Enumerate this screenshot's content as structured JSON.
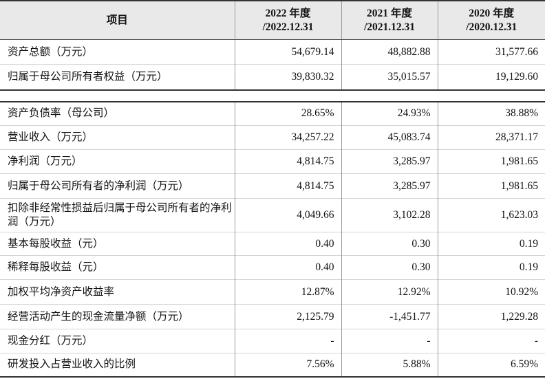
{
  "header": {
    "item": "项目",
    "cols": [
      {
        "year": "2022 年度",
        "date": "/2022.12.31"
      },
      {
        "year": "2021 年度",
        "date": "/2021.12.31"
      },
      {
        "year": "2020 年度",
        "date": "/2020.12.31"
      }
    ]
  },
  "section1": [
    {
      "label": "资产总额（万元）",
      "v": [
        "54,679.14",
        "48,882.88",
        "31,577.66"
      ]
    },
    {
      "label": "归属于母公司所有者权益（万元）",
      "v": [
        "39,830.32",
        "35,015.57",
        "19,129.60"
      ]
    }
  ],
  "section2": [
    {
      "label": "资产负债率（母公司）",
      "v": [
        "28.65%",
        "24.93%",
        "38.88%"
      ]
    },
    {
      "label": "营业收入（万元）",
      "v": [
        "34,257.22",
        "45,083.74",
        "28,371.17"
      ]
    },
    {
      "label": "净利润（万元）",
      "v": [
        "4,814.75",
        "3,285.97",
        "1,981.65"
      ]
    },
    {
      "label": "归属于母公司所有者的净利润（万元）",
      "v": [
        "4,814.75",
        "3,285.97",
        "1,981.65"
      ]
    },
    {
      "label": "扣除非经常性损益后归属于母公司所有者的净利润（万元）",
      "v": [
        "4,049.66",
        "3,102.28",
        "1,623.03"
      ]
    },
    {
      "label": "基本每股收益（元）",
      "v": [
        "0.40",
        "0.30",
        "0.19"
      ]
    },
    {
      "label": "稀释每股收益（元）",
      "v": [
        "0.40",
        "0.30",
        "0.19"
      ]
    },
    {
      "label": "加权平均净资产收益率",
      "v": [
        "12.87%",
        "12.92%",
        "10.92%"
      ]
    },
    {
      "label": "经营活动产生的现金流量净额（万元）",
      "v": [
        "2,125.79",
        "-1,451.77",
        "1,229.28"
      ]
    },
    {
      "label": "现金分红（万元）",
      "v": [
        "-",
        "-",
        "-"
      ]
    },
    {
      "label": "研发投入占营业收入的比例",
      "v": [
        "7.56%",
        "5.88%",
        "6.59%"
      ]
    }
  ]
}
